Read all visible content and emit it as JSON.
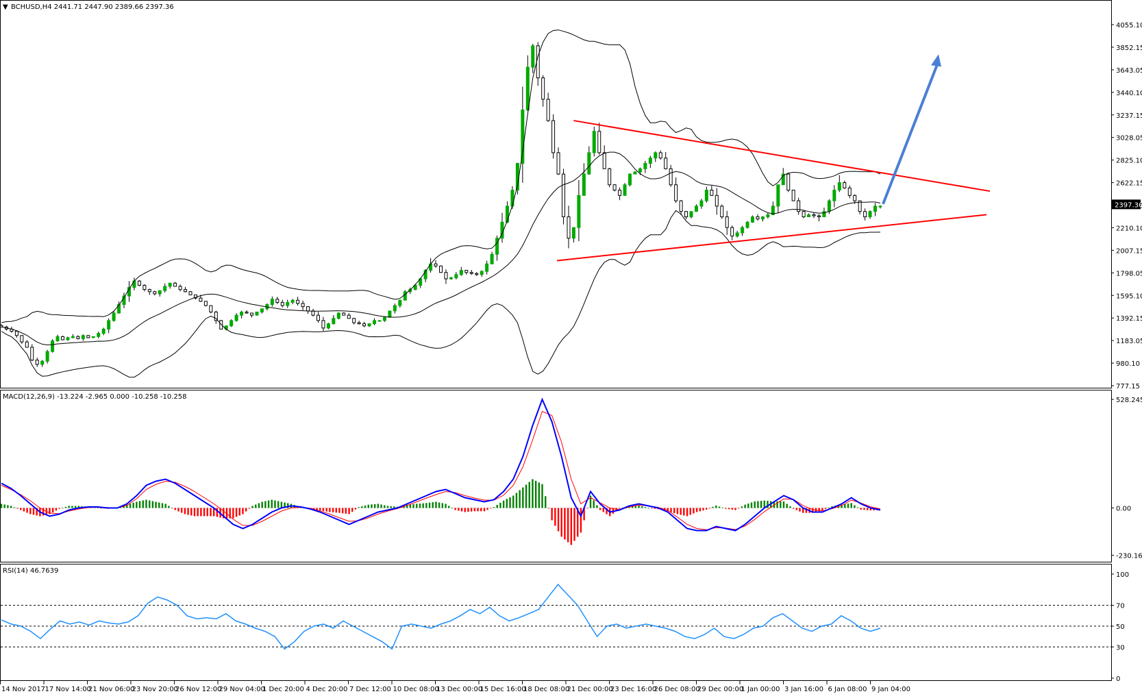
{
  "chart_data": [
    {
      "type": "candlestick",
      "panel": "price",
      "header": "BCHUSD,H4  2441.71 2447.90 2389.66 2397.36",
      "symbol": "BCHUSD",
      "timeframe": "H4",
      "ohlc_last": {
        "open": 2441.71,
        "high": 2447.9,
        "low": 2389.66,
        "close": 2397.36
      },
      "current_price_label": "2397.36",
      "y_ticks": [
        "4055.10",
        "3852.15",
        "3643.05",
        "3440.10",
        "3237.15",
        "3028.05",
        "2825.10",
        "2622.15",
        "2413.05",
        "2210.10",
        "2007.15",
        "1798.05",
        "1595.10",
        "1392.15",
        "1183.05",
        "980.10",
        "777.15"
      ],
      "ylim": [
        740,
        4200
      ],
      "indicators": [
        "Bollinger Bands"
      ],
      "trendlines": [
        {
          "name": "upper",
          "color": "#ff0000",
          "from": {
            "time": "22 Dec 2017",
            "price": 3200
          },
          "to": {
            "time": "10 Jan 2018",
            "price": 2540
          }
        },
        {
          "name": "lower",
          "color": "#ff0000",
          "from": {
            "time": "21 Dec 2017",
            "price": 1890
          },
          "to": {
            "time": "10 Jan 2018",
            "price": 2320
          }
        }
      ],
      "arrow": {
        "color": "#4a7fd4",
        "from_price": 2420,
        "to_price": 3820
      },
      "closes": [
        1270,
        1250,
        1230,
        1190,
        1130,
        1080,
        960,
        920,
        950,
        1040,
        1140,
        1180,
        1150,
        1170,
        1180,
        1160,
        1190,
        1170,
        1180,
        1210,
        1250,
        1330,
        1400,
        1480,
        1560,
        1640,
        1700,
        1660,
        1620,
        1600,
        1580,
        1610,
        1650,
        1680,
        1650,
        1620,
        1600,
        1570,
        1540,
        1510,
        1470,
        1410,
        1330,
        1250,
        1280,
        1330,
        1380,
        1410,
        1400,
        1380,
        1410,
        1440,
        1480,
        1530,
        1500,
        1470,
        1500,
        1520,
        1490,
        1460,
        1420,
        1380,
        1330,
        1260,
        1300,
        1350,
        1400,
        1380,
        1350,
        1310,
        1300,
        1280,
        1300,
        1330,
        1330,
        1360,
        1420,
        1470,
        1520,
        1600,
        1620,
        1660,
        1720,
        1800,
        1860,
        1840,
        1780,
        1720,
        1730,
        1760,
        1800,
        1780,
        1770,
        1760,
        1790,
        1860,
        1950,
        2100,
        2250,
        2400,
        2550,
        2800,
        3300,
        3700,
        3900,
        3600,
        3400,
        3200,
        2900,
        2700,
        2300,
        2100,
        2200,
        2500,
        2700,
        2900,
        3100,
        2900,
        2750,
        2600,
        2550,
        2500,
        2600,
        2700,
        2720,
        2750,
        2800,
        2850,
        2900,
        2850,
        2750,
        2600,
        2450,
        2350,
        2300,
        2350,
        2400,
        2450,
        2550,
        2500,
        2400,
        2300,
        2200,
        2120,
        2150,
        2200,
        2250,
        2300,
        2280,
        2300,
        2320,
        2400,
        2600,
        2700,
        2550,
        2450,
        2350,
        2300,
        2320,
        2310,
        2300,
        2350,
        2450,
        2550,
        2620,
        2570,
        2500,
        2450,
        2350,
        2300,
        2350,
        2400,
        2400
      ]
    },
    {
      "type": "line",
      "panel": "macd",
      "header": "MACD(12,26,9) -13.224 -2.965 0.000 -10.258 -10.258",
      "y_ticks": [
        "528.245",
        "0.00",
        "-230.164"
      ],
      "ylim": [
        -245,
        555
      ],
      "series": [
        {
          "name": "macd",
          "color": "#0000ff",
          "values": [
            120,
            95,
            60,
            20,
            -20,
            -40,
            -30,
            -10,
            0,
            5,
            5,
            0,
            0,
            20,
            60,
            110,
            130,
            140,
            120,
            90,
            60,
            30,
            0,
            -40,
            -80,
            -100,
            -80,
            -50,
            -20,
            0,
            10,
            5,
            -5,
            -20,
            -40,
            -60,
            -80,
            -60,
            -40,
            -20,
            -10,
            0,
            20,
            40,
            60,
            80,
            90,
            70,
            50,
            40,
            30,
            40,
            80,
            140,
            250,
            400,
            528,
            420,
            250,
            50,
            -40,
            80,
            20,
            -20,
            -10,
            10,
            20,
            10,
            0,
            -20,
            -60,
            -100,
            -110,
            -110,
            -90,
            -100,
            -110,
            -80,
            -40,
            0,
            30,
            60,
            40,
            0,
            -20,
            -20,
            0,
            20,
            50,
            20,
            0,
            -10
          ]
        },
        {
          "name": "signal",
          "color": "#ff0000",
          "values": [
            110,
            90,
            65,
            35,
            0,
            -25,
            -28,
            -15,
            -5,
            2,
            4,
            2,
            0,
            12,
            45,
            90,
            115,
            130,
            125,
            105,
            80,
            50,
            20,
            -15,
            -55,
            -85,
            -85,
            -65,
            -40,
            -15,
            0,
            3,
            -2,
            -14,
            -30,
            -48,
            -65,
            -62,
            -48,
            -30,
            -15,
            -3,
            12,
            30,
            48,
            65,
            80,
            75,
            60,
            48,
            38,
            38,
            62,
            110,
            200,
            330,
            470,
            450,
            320,
            140,
            20,
            50,
            25,
            0,
            -8,
            4,
            14,
            10,
            3,
            -12,
            -45,
            -80,
            -100,
            -106,
            -96,
            -98,
            -105,
            -88,
            -56,
            -18,
            14,
            44,
            42,
            12,
            -8,
            -14,
            -4,
            12,
            38,
            24,
            6,
            -5
          ]
        }
      ]
    },
    {
      "type": "line",
      "panel": "rsi",
      "header": "RSI(14) 46.7639",
      "y_ticks": [
        "100",
        "70",
        "50",
        "30",
        "0"
      ],
      "ylim": [
        0,
        100
      ],
      "levels": [
        70,
        50,
        30
      ],
      "series": [
        {
          "name": "rsi",
          "color": "#1e90ff",
          "values": [
            56,
            52,
            50,
            45,
            38,
            47,
            55,
            52,
            54,
            51,
            55,
            53,
            52,
            54,
            60,
            72,
            78,
            75,
            70,
            60,
            57,
            58,
            57,
            62,
            55,
            52,
            48,
            45,
            40,
            28,
            35,
            45,
            50,
            52,
            48,
            55,
            50,
            45,
            40,
            35,
            28,
            50,
            52,
            50,
            48,
            52,
            55,
            60,
            66,
            62,
            68,
            60,
            55,
            58,
            62,
            66,
            78,
            90,
            80,
            70,
            55,
            40,
            50,
            52,
            48,
            50,
            52,
            50,
            48,
            45,
            40,
            38,
            42,
            48,
            40,
            38,
            42,
            48,
            50,
            58,
            62,
            55,
            48,
            45,
            50,
            52,
            60,
            55,
            48,
            45,
            48
          ]
        }
      ]
    }
  ],
  "x_ticks": [
    "14 Nov 2017",
    "17 Nov 14:00",
    "21 Nov 06:00",
    "23 Nov 20:00",
    "26 Nov 12:00",
    "29 Nov 04:00",
    "1 Dec 20:00",
    "4 Dec 20:00",
    "7 Dec 12:00",
    "10 Dec 08:00",
    "13 Dec 00:00",
    "15 Dec 16:00",
    "18 Dec 08:00",
    "21 Dec 00:00",
    "23 Dec 16:00",
    "26 Dec 08:00",
    "29 Dec 00:00",
    "1 Jan 00:00",
    "3 Jan 16:00",
    "6 Jan 08:00",
    "9 Jan 04:00"
  ],
  "colors": {
    "bull_candle": "#00aa00",
    "bear_candle": "#000000",
    "bollinger": "#000000",
    "macd_positive": "#008000",
    "macd_negative": "#ff0000",
    "rsi": "#1e90ff",
    "trendline": "#ff0000",
    "arrow": "#4a7fd4"
  }
}
